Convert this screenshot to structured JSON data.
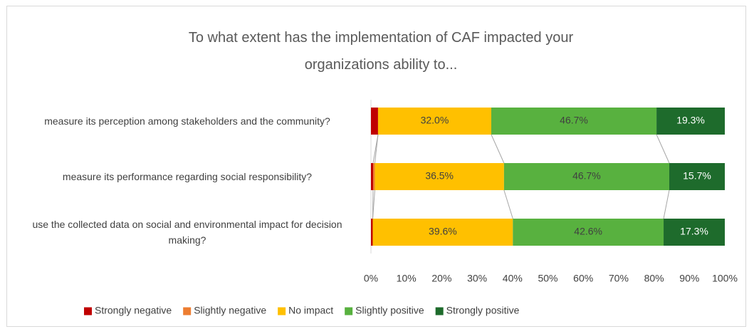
{
  "chart_data": {
    "type": "stacked_barh",
    "title": "To what extent has the implementation of CAF impacted your organizations ability to...",
    "categories": [
      "measure its perception among stakeholders and the community?",
      "measure its performance regarding social responsibility?",
      "use the collected data on social and environmental impact for decision making?"
    ],
    "series": [
      {
        "name": "Strongly negative",
        "color": "#c00000",
        "values": [
          2.0,
          0.6,
          0.5
        ]
      },
      {
        "name": "Slightly negative",
        "color": "#ed7d31",
        "values": [
          0,
          0.5,
          0
        ]
      },
      {
        "name": "No impact",
        "color": "#ffc000",
        "values": [
          32.0,
          36.5,
          39.6
        ],
        "value_labels": [
          "32.0%",
          "36.5%",
          "39.6%"
        ]
      },
      {
        "name": "Slightly positive",
        "color": "#58b13f",
        "values": [
          46.7,
          46.7,
          42.6
        ],
        "value_labels": [
          "46.7%",
          "46.7%",
          "42.6%"
        ]
      },
      {
        "name": "Strongly positive",
        "color": "#1e6b2c",
        "values": [
          19.3,
          15.7,
          17.3
        ],
        "value_labels": [
          "19.3%",
          "15.7%",
          "17.3%"
        ]
      }
    ],
    "xlim": [
      0,
      100
    ],
    "xticks": [
      {
        "value": 0,
        "label": "0%"
      },
      {
        "value": 10,
        "label": "10%"
      },
      {
        "value": 20,
        "label": "20%"
      },
      {
        "value": 30,
        "label": "30%"
      },
      {
        "value": 40,
        "label": "40%"
      },
      {
        "value": 50,
        "label": "50%"
      },
      {
        "value": 60,
        "label": "60%"
      },
      {
        "value": 70,
        "label": "70%"
      },
      {
        "value": 80,
        "label": "80%"
      },
      {
        "value": 90,
        "label": "90%"
      },
      {
        "value": 100,
        "label": "100%"
      }
    ],
    "legend": "bottom",
    "grid": false
  }
}
